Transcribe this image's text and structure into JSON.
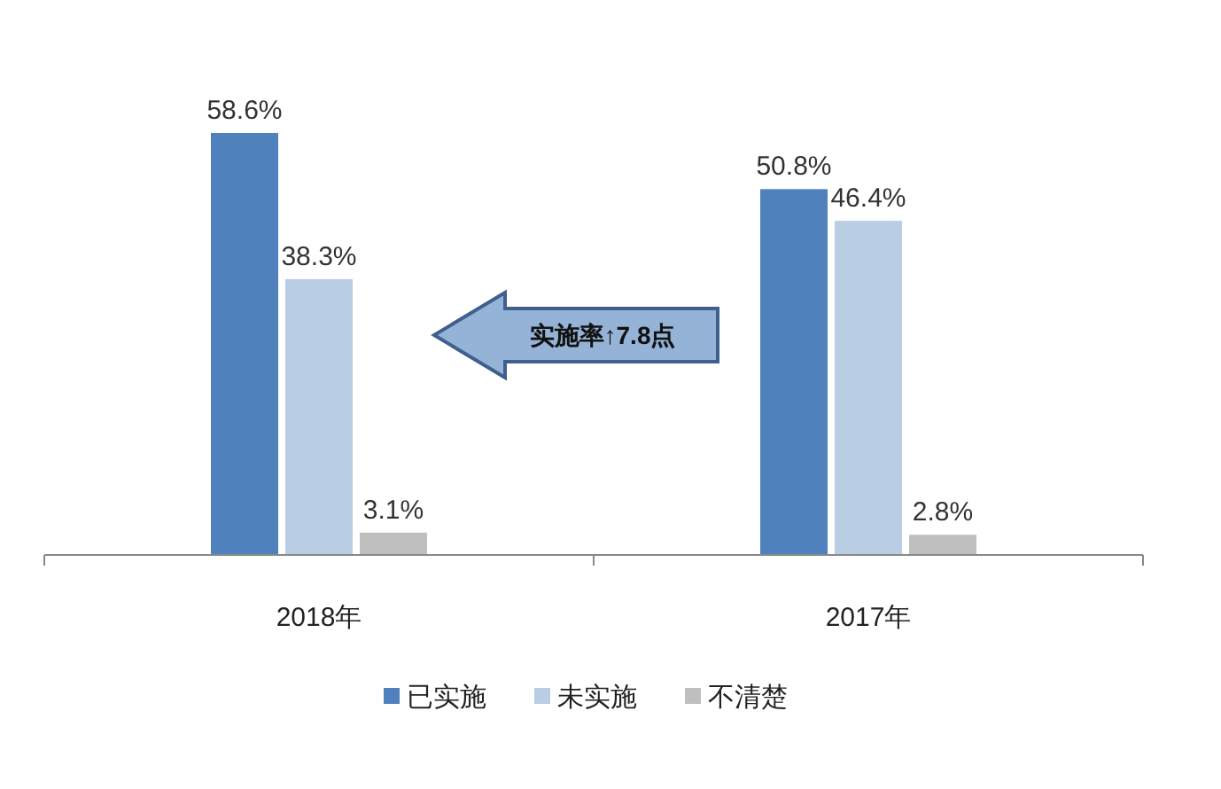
{
  "chart_data": {
    "type": "bar",
    "categories": [
      "2018年",
      "2017年"
    ],
    "series": [
      {
        "name": "已实施",
        "color": "#4f81bd",
        "values": [
          58.6,
          50.8
        ],
        "value_labels": [
          "58.6%",
          "50.8%"
        ]
      },
      {
        "name": "未实施",
        "color": "#b9cde5",
        "values": [
          38.3,
          46.4
        ],
        "value_labels": [
          "38.3%",
          "46.4%"
        ]
      },
      {
        "name": "不清楚",
        "color": "#bfbfbf",
        "values": [
          3.1,
          2.8
        ],
        "value_labels": [
          "3.1%",
          "2.8%"
        ]
      }
    ],
    "annotations": [
      "实施率↑7.8点"
    ],
    "legend": "bottom"
  }
}
